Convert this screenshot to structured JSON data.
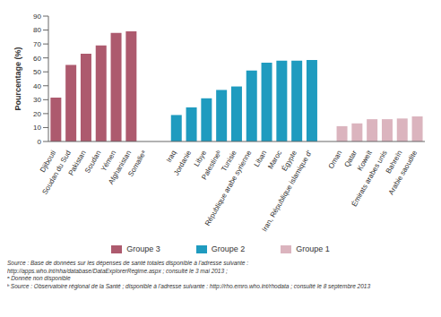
{
  "chart_data": {
    "type": "bar",
    "y_label": "Pourcentage (%)",
    "categories": [
      "Djibouti",
      "Soudan du Sud",
      "Pakistan",
      "Soudan",
      "Yémen",
      "Afghanistan",
      "Somalieᵃ",
      null,
      "Iraq",
      "Jordanie",
      "Libye",
      "Palestineᵇ",
      "Tunisie",
      "République arabe syrienne",
      "Liban",
      "Maroc",
      "Égypte",
      "Iran, République islamique d'",
      null,
      "Oman",
      "Qatar",
      "Koweït",
      "Émirats arabes unis",
      "Bahreïn",
      "Arabie saoudite"
    ],
    "series": [
      {
        "name": "Groupe 3",
        "color": "#ad5a6e",
        "values": [
          31.5,
          55,
          63,
          69,
          78,
          79,
          null,
          null,
          null,
          null,
          null,
          null,
          null,
          null,
          null,
          null,
          null,
          null,
          null,
          null,
          null,
          null,
          null,
          null,
          null
        ]
      },
      {
        "name": "Groupe 2",
        "color": "#1f9bbf",
        "values": [
          null,
          null,
          null,
          null,
          null,
          null,
          null,
          null,
          19,
          24.5,
          31,
          37,
          39.5,
          51,
          56.5,
          58,
          58,
          58.5,
          null,
          null,
          null,
          null,
          null,
          null,
          null
        ]
      },
      {
        "name": "Groupe 1",
        "color": "#dbb4be",
        "values": [
          null,
          null,
          null,
          null,
          null,
          null,
          null,
          null,
          null,
          null,
          null,
          null,
          null,
          null,
          null,
          null,
          null,
          null,
          null,
          11,
          13,
          16,
          16,
          16.5,
          18
        ]
      }
    ],
    "ylim": [
      0,
      90
    ],
    "yticks": [
      0,
      10,
      20,
      30,
      40,
      50,
      60,
      70,
      80,
      90
    ],
    "grid": false,
    "legend": "bottom",
    "notes": [
      "Source : Base de données sur les dépenses de santé totales disponible à l'adresse suivante :",
      "http://apps.who.int/nha/database/DataExplorerRegime.aspx ; consulté le 3 mai 2013 ;",
      "ᵃ Donnée non disponible",
      "ᵇ Source : Observatoire régional de la Santé ; disponible à l'adresse suivante : http://rho.emro.who.int/rhodata ; consulté le 8 septembre 2013"
    ]
  }
}
